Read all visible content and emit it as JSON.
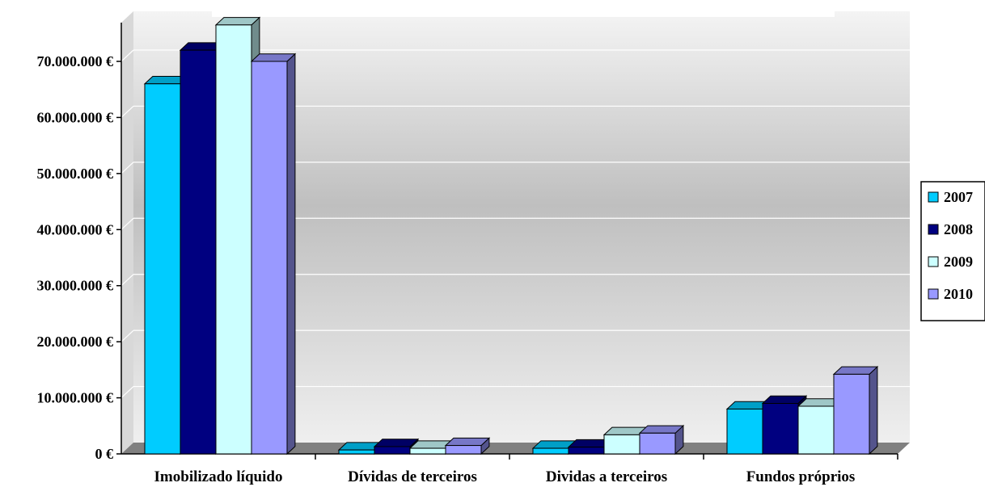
{
  "chart_data": {
    "type": "bar",
    "title": "",
    "xlabel": "",
    "ylabel": "",
    "categories": [
      "Imobilizado líquido",
      "Dívidas de terceiros",
      "Dividas a terceiros",
      "Fundos próprios"
    ],
    "series": [
      {
        "name": "2007",
        "values": [
          66000000,
          700000,
          1000000,
          8000000
        ],
        "color": "#00CCFF"
      },
      {
        "name": "2008",
        "values": [
          72000000,
          1300000,
          1200000,
          9000000
        ],
        "color": "#000080"
      },
      {
        "name": "2009",
        "values": [
          76500000,
          1000000,
          3400000,
          8500000
        ],
        "color": "#CCFFFF"
      },
      {
        "name": "2010",
        "values": [
          70000000,
          1500000,
          3700000,
          14200000
        ],
        "color": "#9999FF"
      }
    ],
    "ylim": [
      0,
      78000000
    ],
    "yticks": [
      0,
      10000000,
      20000000,
      30000000,
      40000000,
      50000000,
      60000000,
      70000000
    ],
    "ytick_labels": [
      "0 €",
      "10.000.000 €",
      "20.000.000 €",
      "30.000.000 €",
      "40.000.000 €",
      "50.000.000 €",
      "60.000.000 €",
      "70.000.000 €"
    ],
    "grid": true,
    "legend": {
      "position": "right",
      "entries": [
        "2007",
        "2008",
        "2009",
        "2010"
      ]
    },
    "style": "3d-clustered-column"
  }
}
